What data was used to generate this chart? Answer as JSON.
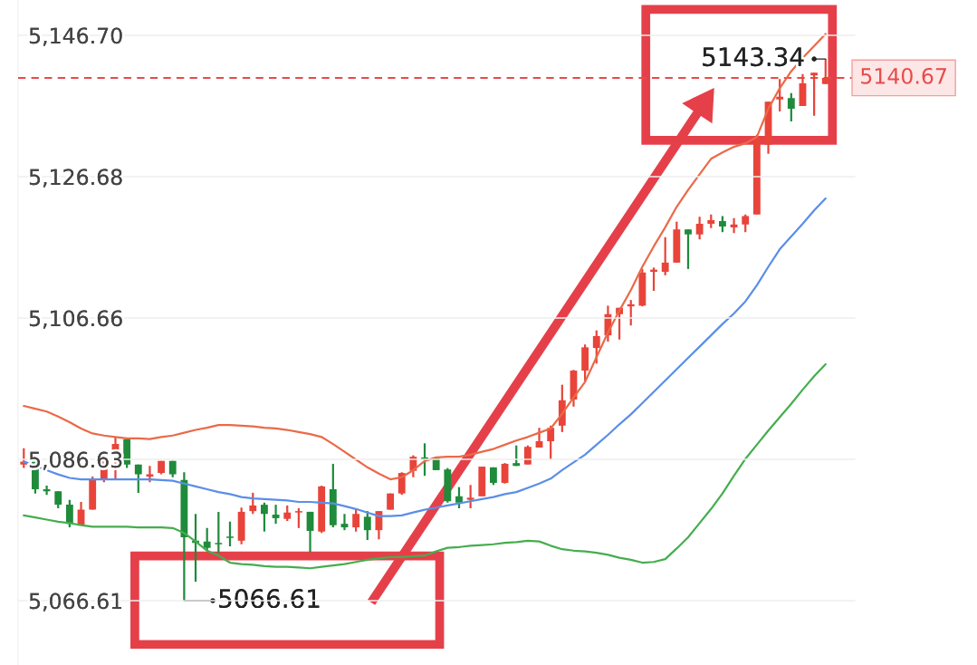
{
  "chart_data": {
    "type": "candlestick",
    "categories": [
      null,
      null,
      null,
      null,
      null,
      null,
      null,
      null,
      null,
      null,
      null,
      null,
      null,
      null,
      null,
      null,
      null,
      null,
      null,
      null,
      null,
      null,
      null,
      null,
      null,
      null,
      null,
      null,
      null,
      null,
      null,
      null,
      null,
      null,
      null,
      null,
      null,
      null,
      null,
      null,
      null,
      null,
      null,
      null,
      null,
      null,
      null,
      null,
      null,
      null,
      null,
      null,
      null,
      null,
      null,
      null,
      null,
      null,
      null,
      null,
      null,
      null,
      null,
      null,
      null,
      null,
      null,
      null,
      null,
      null,
      null
    ],
    "ohlc": [
      [
        5085.9,
        5088.2,
        5085.4,
        5086.3
      ],
      [
        5086.3,
        5086.3,
        5081.8,
        5082.4
      ],
      [
        5082.4,
        5082.9,
        5081.6,
        5082.1
      ],
      [
        5082.1,
        5082.1,
        5079.7,
        5080.2
      ],
      [
        5080.2,
        5080.9,
        5077.0,
        5077.5
      ],
      [
        5077.4,
        5080.6,
        5077.4,
        5079.5
      ],
      [
        5079.5,
        5084.2,
        5079.5,
        5083.9
      ],
      [
        5083.8,
        5086.8,
        5083.4,
        5086.8
      ],
      [
        5086.9,
        5089.7,
        5083.8,
        5088.8
      ],
      [
        5089.5,
        5089.5,
        5085.4,
        5085.9
      ],
      [
        5085.9,
        5085.9,
        5081.9,
        5084.5
      ],
      [
        5084.2,
        5085.7,
        5083.4,
        5084.5
      ],
      [
        5084.7,
        5086.4,
        5084.5,
        5086.4
      ],
      [
        5086.4,
        5086.4,
        5084.1,
        5084.5
      ],
      [
        5083.7,
        5084.8,
        5066.61,
        5075.6
      ],
      [
        5075.1,
        5078.9,
        5069.3,
        5074.8
      ],
      [
        5075.0,
        5076.9,
        5073.7,
        5074.1
      ],
      [
        5074.8,
        5079.2,
        5073.4,
        5074.6
      ],
      [
        5075.7,
        5077.8,
        5074.3,
        5075.5
      ],
      [
        5075.1,
        5079.8,
        5074.6,
        5079.2
      ],
      [
        5079.3,
        5081.9,
        5078.9,
        5080.1
      ],
      [
        5080.2,
        5080.5,
        5076.4,
        5078.9
      ],
      [
        5078.8,
        5080.2,
        5077.5,
        5078.3
      ],
      [
        5078.2,
        5080.1,
        5077.9,
        5079.1
      ],
      [
        5079.1,
        5079.7,
        5076.9,
        5079.3
      ],
      [
        5079.2,
        5079.2,
        5073.5,
        5076.5
      ],
      [
        5076.4,
        5082.9,
        5076.2,
        5082.8
      ],
      [
        5082.4,
        5086.0,
        5077.0,
        5077.3
      ],
      [
        5077.5,
        5078.9,
        5076.6,
        5077.0
      ],
      [
        5077.0,
        5079.6,
        5076.4,
        5078.9
      ],
      [
        5078.5,
        5079.3,
        5075.2,
        5076.6
      ],
      [
        5076.6,
        5079.3,
        5075.3,
        5079.3
      ],
      [
        5079.5,
        5081.8,
        5079.5,
        5081.8
      ],
      [
        5081.8,
        5084.8,
        5081.6,
        5084.7
      ],
      [
        5085.0,
        5087.2,
        5084.1,
        5087.0
      ],
      [
        5086.9,
        5088.9,
        5084.3,
        5086.6
      ],
      [
        5086.8,
        5086.8,
        5085.1,
        5085.1
      ],
      [
        5085.2,
        5085.4,
        5080.5,
        5080.7
      ],
      [
        5081.4,
        5082.7,
        5079.7,
        5080.5
      ],
      [
        5080.9,
        5083.0,
        5079.7,
        5081.2
      ],
      [
        5081.4,
        5085.6,
        5081.4,
        5085.6
      ],
      [
        5085.5,
        5085.5,
        5083.0,
        5083.3
      ],
      [
        5083.3,
        5086.1,
        5083.2,
        5086.0
      ],
      [
        5086.1,
        5088.6,
        5085.7,
        5085.7
      ],
      [
        5085.9,
        5088.6,
        5085.9,
        5088.4
      ],
      [
        5088.3,
        5091.1,
        5088.3,
        5089.2
      ],
      [
        5089.2,
        5091.4,
        5086.6,
        5091.1
      ],
      [
        5091.4,
        5097.2,
        5090.5,
        5095.0
      ],
      [
        5095.1,
        5099.3,
        5094.1,
        5099.2
      ],
      [
        5099.2,
        5102.9,
        5097.7,
        5102.5
      ],
      [
        5102.4,
        5104.9,
        5100.2,
        5104.1
      ],
      [
        5104.2,
        5108.4,
        5103.3,
        5107.2
      ],
      [
        5107.2,
        5108.1,
        5103.6,
        5108.1
      ],
      [
        5108.3,
        5109.2,
        5105.6,
        5108.6
      ],
      [
        5108.4,
        5113.6,
        5108.3,
        5113.1
      ],
      [
        5113.2,
        5113.8,
        5110.5,
        5113.5
      ],
      [
        5113.2,
        5118.1,
        5112.7,
        5114.5
      ],
      [
        5114.5,
        5120.3,
        5114.5,
        5119.2
      ],
      [
        5119.2,
        5119.2,
        5113.6,
        5118.5
      ],
      [
        5118.5,
        5121.0,
        5117.8,
        5120.0
      ],
      [
        5120.0,
        5121.3,
        5119.4,
        5120.5
      ],
      [
        5120.4,
        5121.1,
        5118.8,
        5119.6
      ],
      [
        5119.5,
        5120.8,
        5118.7,
        5119.9
      ],
      [
        5119.9,
        5121.3,
        5118.8,
        5121.1
      ],
      [
        5121.3,
        5132.6,
        5121.3,
        5132.2
      ],
      [
        5131.2,
        5137.3,
        5129.9,
        5137.3
      ],
      [
        5137.6,
        5140.5,
        5135.9,
        5138.0
      ],
      [
        5137.8,
        5138.5,
        5134.5,
        5136.3
      ],
      [
        5136.7,
        5141.2,
        5136.7,
        5139.9
      ],
      [
        5141.0,
        5141.4,
        5135.3,
        5141.4
      ],
      [
        5139.8,
        5143.34,
        5139.8,
        5140.67
      ]
    ],
    "colors": [
      "#e8443a",
      "#1f8b3b",
      "#1f8b3b",
      "#1f8b3b",
      "#1f8b3b",
      "#e8443a",
      "#e8443a",
      "#e8443a",
      "#e8443a",
      "#1f8b3b",
      "#1f8b3b",
      "#e8443a",
      "#e8443a",
      "#1f8b3b",
      "#1f8b3b",
      "#1f8b3b",
      "#1f8b3b",
      "#1f8b3b",
      "#1f8b3b",
      "#e8443a",
      "#e8443a",
      "#1f8b3b",
      "#1f8b3b",
      "#e8443a",
      "#e8443a",
      "#1f8b3b",
      "#e8443a",
      "#1f8b3b",
      "#1f8b3b",
      "#e8443a",
      "#1f8b3b",
      "#e8443a",
      "#e8443a",
      "#e8443a",
      "#e8443a",
      "#1f8b3b",
      "#1f8b3b",
      "#1f8b3b",
      "#1f8b3b",
      "#e8443a",
      "#e8443a",
      "#1f8b3b",
      "#e8443a",
      "#1f8b3b",
      "#e8443a",
      "#e8443a",
      "#e8443a",
      "#e8443a",
      "#e8443a",
      "#e8443a",
      "#e8443a",
      "#e8443a",
      "#e8443a",
      "#e8443a",
      "#e8443a",
      "#e8443a",
      "#e8443a",
      "#e8443a",
      "#1f8b3b",
      "#e8443a",
      "#e8443a",
      "#1f8b3b",
      "#e8443a",
      "#e8443a",
      "#e8443a",
      "#e8443a",
      "#e8443a",
      "#1f8b3b",
      "#e8443a",
      "#e8443a",
      "#e8443a"
    ],
    "series": [
      {
        "type": "line",
        "color": "#ea6a48",
        "values": [
          5094.2,
          5093.8,
          5093.4,
          5092.7,
          5091.9,
          5091.0,
          5090.3,
          5090.0,
          5089.8,
          5089.6,
          5089.6,
          5089.5,
          5089.8,
          5090.0,
          5090.4,
          5090.8,
          5091.1,
          5091.5,
          5091.5,
          5091.4,
          5091.3,
          5091.1,
          5091.0,
          5090.8,
          5090.5,
          5090.2,
          5089.8,
          5088.8,
          5087.7,
          5086.6,
          5085.5,
          5084.6,
          5083.8,
          5084.1,
          5085.1,
          5086.4,
          5086.9,
          5087.0,
          5087.0,
          5087.3,
          5087.7,
          5088.1,
          5088.7,
          5089.3,
          5089.8,
          5090.4,
          5091.0,
          5093.1,
          5095.4,
          5097.6,
          5101.1,
          5104.6,
          5107.7,
          5110.6,
          5113.9,
          5116.8,
          5119.5,
          5122.4,
          5124.8,
          5127.0,
          5129.2,
          5130.1,
          5130.9,
          5131.4,
          5132.3,
          5136.3,
          5139.2,
          5141.6,
          5143.5,
          5145.2,
          5146.9
        ]
      },
      {
        "type": "line",
        "color": "#5b8ee8",
        "values": [
          5086.3,
          5085.7,
          5085.1,
          5084.5,
          5084.0,
          5083.8,
          5083.8,
          5083.8,
          5083.8,
          5083.8,
          5083.8,
          5083.8,
          5083.7,
          5083.6,
          5083.2,
          5082.8,
          5082.4,
          5082.0,
          5081.7,
          5081.3,
          5081.1,
          5081.0,
          5080.9,
          5080.8,
          5080.6,
          5080.6,
          5080.5,
          5080.4,
          5080.0,
          5079.6,
          5079.1,
          5078.6,
          5078.6,
          5078.7,
          5079.1,
          5079.5,
          5079.8,
          5080.1,
          5080.4,
          5080.7,
          5081.0,
          5081.3,
          5081.7,
          5082.0,
          5082.6,
          5083.2,
          5083.9,
          5085.1,
          5086.2,
          5087.3,
          5088.7,
          5090.1,
          5091.6,
          5093.0,
          5094.6,
          5096.2,
          5097.8,
          5099.4,
          5101.0,
          5102.6,
          5104.2,
          5105.8,
          5107.3,
          5109.0,
          5111.3,
          5113.9,
          5116.4,
          5118.2,
          5120.0,
          5121.9,
          5123.6
        ]
      },
      {
        "type": "line",
        "color": "#46ad4f",
        "values": [
          5078.7,
          5078.4,
          5078.1,
          5077.8,
          5077.6,
          5077.3,
          5077.1,
          5077.1,
          5077.1,
          5077.1,
          5077.0,
          5077.0,
          5077.0,
          5076.9,
          5076.2,
          5075.0,
          5073.7,
          5073.0,
          5072.0,
          5071.8,
          5071.7,
          5071.5,
          5071.4,
          5071.4,
          5071.3,
          5071.2,
          5071.4,
          5071.6,
          5071.8,
          5072.1,
          5072.4,
          5072.6,
          5072.8,
          5072.8,
          5072.9,
          5073.0,
          5073.6,
          5074.1,
          5074.2,
          5074.4,
          5074.5,
          5074.6,
          5074.8,
          5074.9,
          5075.1,
          5075.0,
          5074.4,
          5073.9,
          5073.7,
          5073.6,
          5073.4,
          5073.1,
          5072.7,
          5072.4,
          5072.0,
          5072.1,
          5072.5,
          5074.0,
          5075.6,
          5077.6,
          5079.6,
          5081.8,
          5084.3,
          5086.7,
          5088.7,
          5090.7,
          5092.6,
          5094.5,
          5096.5,
          5098.4,
          5100.1
        ]
      }
    ],
    "ylim": [
      5057.5,
      5151.7
    ],
    "yticks": [
      {
        "value": 5146.7,
        "label": "5,146.70"
      },
      {
        "value": 5126.68,
        "label": "5,126.68"
      },
      {
        "value": 5106.66,
        "label": "5,106.66"
      },
      {
        "value": 5086.63,
        "label": "5,086.63"
      },
      {
        "value": 5066.61,
        "label": "5,066.61"
      }
    ],
    "grid": "y",
    "tick_labels": "y",
    "ref_lines": [
      {
        "axis": "y",
        "value": 5140.67,
        "label": "5140.67",
        "color": "#e84a4a",
        "line_style": "dashed"
      }
    ],
    "annotations": [
      "5143.34",
      "5066.61"
    ]
  }
}
